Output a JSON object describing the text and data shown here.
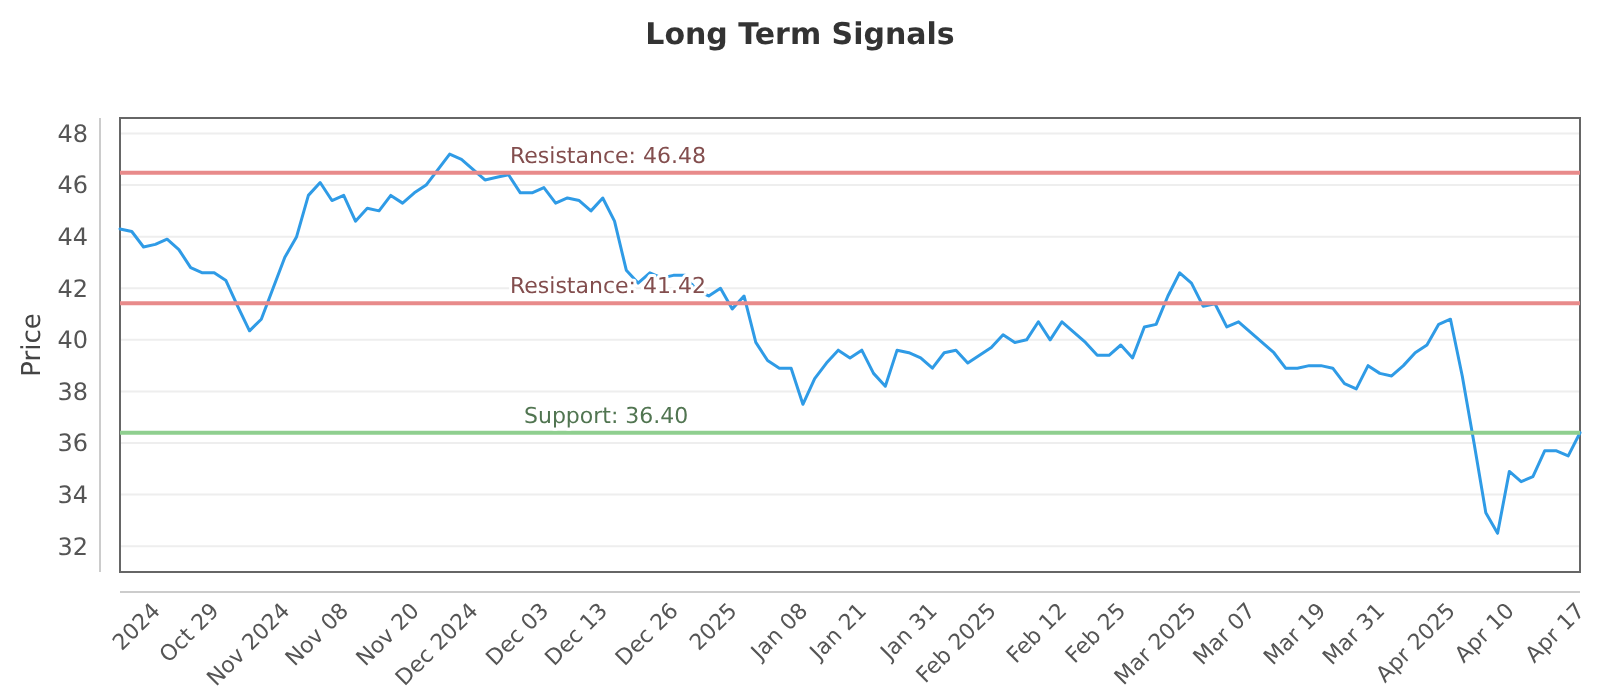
{
  "chart_data": {
    "type": "line",
    "title": "Long Term Signals",
    "ylabel": "Price",
    "categories": [
      null,
      null,
      null,
      "2024",
      null,
      null,
      null,
      null,
      "Oct 29",
      null,
      null,
      null,
      null,
      null,
      "Nov 2024",
      null,
      null,
      null,
      null,
      "Nov 08",
      null,
      null,
      null,
      null,
      null,
      "Nov 20",
      null,
      null,
      null,
      null,
      "Dec 2024",
      null,
      null,
      null,
      null,
      null,
      "Dec 03",
      null,
      null,
      null,
      null,
      "Dec 13",
      null,
      null,
      null,
      null,
      null,
      "Dec 26",
      null,
      null,
      null,
      null,
      "2025",
      null,
      null,
      null,
      null,
      null,
      "Jan 08",
      null,
      null,
      null,
      null,
      "Jan 21",
      null,
      null,
      null,
      null,
      null,
      "Jan 31",
      null,
      null,
      null,
      null,
      "Feb 2025",
      null,
      null,
      null,
      null,
      null,
      "Feb 12",
      null,
      null,
      null,
      null,
      "Feb 25",
      null,
      null,
      null,
      null,
      null,
      "Mar 2025",
      null,
      null,
      null,
      null,
      "Mar 07",
      null,
      null,
      null,
      null,
      null,
      "Mar 19",
      null,
      null,
      null,
      null,
      "Mar 31",
      null,
      null,
      null,
      null,
      null,
      "Apr 2025",
      null,
      null,
      null,
      null,
      "Apr 10",
      null,
      null,
      null,
      null,
      null,
      "Apr 17"
    ],
    "series": [
      {
        "color": "#2f9be6",
        "values": [
          44.3,
          44.2,
          43.6,
          43.7,
          43.9,
          43.5,
          42.8,
          42.6,
          42.6,
          42.3,
          41.3,
          40.35,
          40.8,
          42.0,
          43.2,
          44.0,
          45.6,
          46.1,
          45.4,
          45.6,
          44.6,
          45.1,
          45.0,
          45.6,
          45.3,
          45.7,
          46.0,
          46.6,
          47.2,
          47.0,
          46.6,
          46.2,
          46.3,
          46.4,
          45.7,
          45.7,
          45.9,
          45.3,
          45.5,
          45.4,
          45.0,
          45.5,
          44.6,
          42.7,
          42.2,
          42.6,
          42.4,
          42.5,
          42.5,
          41.9,
          41.7,
          42.0,
          41.2,
          41.7,
          39.9,
          39.2,
          38.9,
          38.9,
          37.5,
          38.5,
          39.1,
          39.6,
          39.3,
          39.6,
          38.7,
          38.2,
          39.6,
          39.5,
          39.3,
          38.9,
          39.5,
          39.6,
          39.1,
          39.4,
          39.7,
          40.2,
          39.9,
          40.0,
          40.7,
          40.0,
          40.7,
          40.3,
          39.9,
          39.4,
          39.4,
          39.8,
          39.3,
          40.5,
          40.6,
          41.7,
          42.6,
          42.2,
          41.3,
          41.4,
          40.5,
          40.7,
          40.3,
          39.9,
          39.5,
          38.9,
          38.9,
          39.0,
          39.0,
          38.9,
          38.3,
          38.1,
          39.0,
          38.7,
          38.6,
          39.0,
          39.5,
          39.8,
          40.6,
          40.8,
          38.6,
          36.0,
          33.3,
          32.5,
          34.9,
          34.5,
          34.7,
          35.7,
          35.7,
          35.5,
          36.4
        ]
      }
    ],
    "ylim": [
      31,
      48.6
    ],
    "yticks": [
      32,
      34,
      36,
      38,
      40,
      42,
      44,
      46,
      48
    ],
    "grid": "y",
    "marker": "none",
    "line_style": "solid",
    "ref_lines": [
      {
        "axis": "y",
        "value": 46.48,
        "label": "Resistance: 46.48",
        "color": "#e88a8a"
      },
      {
        "axis": "y",
        "value": 41.42,
        "label": "Resistance: 41.42",
        "color": "#e88a8a"
      },
      {
        "axis": "y",
        "value": 36.4,
        "label": "Support: 36.40",
        "color": "#8fcf8f"
      }
    ]
  }
}
